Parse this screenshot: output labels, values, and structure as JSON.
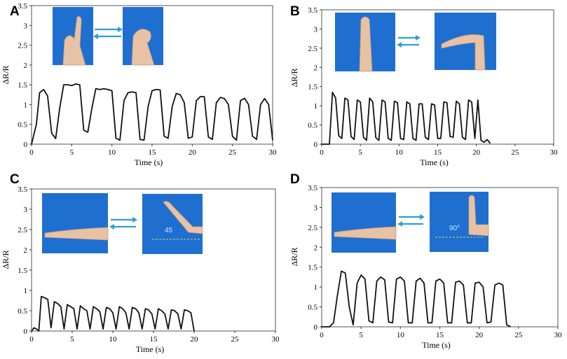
{
  "chart_data": [
    {
      "panel": "A",
      "type": "line",
      "xlabel": "Time (s)",
      "ylabel": "ΔR/R",
      "xlim": [
        0,
        30
      ],
      "ylim": [
        0,
        3.5
      ],
      "xticks": [
        "0",
        "5",
        "10",
        "15",
        "20",
        "25",
        "30"
      ],
      "yticks": [
        "0",
        "0.5",
        "1",
        "1.5",
        "2",
        "2.5",
        "3",
        "3.5"
      ],
      "grid": false,
      "series": [
        {
          "x": [
            0,
            0.6,
            1.0,
            1.5,
            2.0,
            2.5,
            3.0,
            3.5,
            4.0,
            4.5,
            5.0,
            5.5,
            6.0,
            6.5,
            7.0,
            7.5,
            8.0,
            8.5,
            9.0,
            9.5,
            10.0,
            10.5,
            11.0,
            11.5,
            12.0,
            12.5,
            13.0,
            13.5,
            14.0,
            14.5,
            15.0,
            15.5,
            16.0,
            16.5,
            17.0,
            17.5,
            18.0,
            18.5,
            19.0,
            19.5,
            20.0,
            20.5,
            21.0,
            21.5,
            22.0,
            22.5,
            23.0,
            23.5,
            24.0,
            24.5,
            25.0,
            25.5,
            26.0,
            26.5,
            27.0,
            27.5,
            28.0,
            28.5,
            29.0,
            29.5,
            30.0
          ],
          "values": [
            0.0,
            0.5,
            1.3,
            1.38,
            1.22,
            0.28,
            0.14,
            0.9,
            1.5,
            1.5,
            1.48,
            1.52,
            1.5,
            0.35,
            0.3,
            0.9,
            1.4,
            1.38,
            1.4,
            1.38,
            1.35,
            0.15,
            0.1,
            1.1,
            1.3,
            1.32,
            1.3,
            0.12,
            0.1,
            0.95,
            1.35,
            1.38,
            1.37,
            0.2,
            0.15,
            0.95,
            1.28,
            1.25,
            1.05,
            0.15,
            0.18,
            1.1,
            1.2,
            1.2,
            0.18,
            0.12,
            1.05,
            1.18,
            1.15,
            1.0,
            0.2,
            0.1,
            1.1,
            1.16,
            1.0,
            0.2,
            0.12,
            1.0,
            1.15,
            1.0,
            0.1
          ]
        }
      ],
      "photos": [
        {
          "name": "index-finger-straight-photo"
        },
        {
          "name": "index-finger-bent-photo"
        }
      ]
    },
    {
      "panel": "B",
      "type": "line",
      "xlabel": "Time (s)",
      "ylabel": "ΔR/R",
      "xlim": [
        0,
        30
      ],
      "ylim": [
        0,
        3.5
      ],
      "xticks": [
        "0",
        "5",
        "10",
        "15",
        "20",
        "25",
        "30"
      ],
      "yticks": [
        "0",
        "0.5",
        "1",
        "1.5",
        "2",
        "2.5",
        "3",
        "3.5"
      ],
      "grid": false,
      "series": [
        {
          "x": [
            0,
            1.0,
            1.4,
            1.8,
            2.2,
            2.6,
            3.0,
            3.4,
            3.8,
            4.2,
            4.6,
            5.0,
            5.4,
            5.8,
            6.2,
            6.6,
            7.0,
            7.4,
            7.8,
            8.2,
            8.6,
            9.0,
            9.4,
            9.8,
            10.2,
            10.6,
            11.0,
            11.4,
            11.8,
            12.2,
            12.6,
            13.0,
            13.4,
            13.8,
            14.2,
            14.6,
            15.0,
            15.4,
            15.8,
            16.2,
            16.6,
            17.0,
            17.4,
            17.8,
            18.2,
            18.6,
            19.0,
            19.4,
            19.8,
            20.2,
            20.6,
            21.0,
            21.4,
            21.8
          ],
          "values": [
            0.0,
            0.0,
            1.35,
            1.2,
            0.22,
            0.15,
            1.2,
            1.15,
            0.2,
            0.12,
            1.15,
            1.1,
            0.18,
            0.1,
            1.2,
            1.1,
            0.17,
            0.1,
            1.15,
            1.1,
            0.15,
            0.1,
            1.12,
            1.08,
            0.15,
            0.12,
            1.1,
            1.05,
            0.15,
            0.1,
            1.05,
            1.05,
            0.18,
            0.12,
            1.05,
            1.02,
            0.15,
            0.15,
            1.1,
            1.08,
            0.2,
            0.18,
            1.12,
            1.05,
            0.18,
            0.12,
            1.15,
            1.1,
            0.15,
            1.15,
            0.1,
            0.05,
            0.12,
            0.02
          ]
        }
      ],
      "photos": [
        {
          "name": "wrist-straight-photo"
        },
        {
          "name": "wrist-bent-photo"
        }
      ]
    },
    {
      "panel": "C",
      "type": "line",
      "xlabel": "Time (s)",
      "ylabel": "ΔR/R",
      "xlim": [
        0,
        30
      ],
      "ylim": [
        0,
        3.5
      ],
      "xticks": [
        "0",
        "5",
        "10",
        "15",
        "20",
        "25",
        "30"
      ],
      "yticks": [
        "0",
        "0.5",
        "1",
        "1.5",
        "2",
        "2.5",
        "3",
        "3.5"
      ],
      "grid": false,
      "angle_label": "45",
      "series": [
        {
          "x": [
            0,
            0.3,
            0.6,
            0.9,
            1.2,
            1.6,
            2.0,
            2.4,
            2.8,
            3.2,
            3.6,
            4.0,
            4.4,
            4.8,
            5.2,
            5.6,
            6.0,
            6.4,
            6.8,
            7.2,
            7.6,
            8.0,
            8.4,
            8.8,
            9.2,
            9.6,
            10.0,
            10.4,
            10.8,
            11.2,
            11.6,
            12.0,
            12.4,
            12.8,
            13.2,
            13.6,
            14.0,
            14.4,
            14.8,
            15.2,
            15.6,
            16.0,
            16.4,
            16.8,
            17.2,
            17.6,
            18.0,
            18.4,
            18.8,
            19.2,
            19.6,
            20.0
          ],
          "values": [
            0.0,
            0.08,
            0.05,
            0.0,
            0.85,
            0.82,
            0.78,
            0.08,
            0.72,
            0.68,
            0.6,
            0.05,
            0.65,
            0.6,
            0.55,
            0.05,
            0.62,
            0.55,
            0.5,
            0.05,
            0.6,
            0.55,
            0.48,
            0.05,
            0.58,
            0.55,
            0.45,
            0.05,
            0.6,
            0.55,
            0.45,
            0.05,
            0.58,
            0.55,
            0.45,
            0.05,
            0.55,
            0.52,
            0.42,
            0.05,
            0.55,
            0.5,
            0.42,
            0.05,
            0.52,
            0.5,
            0.42,
            0.05,
            0.52,
            0.5,
            0.45,
            0.0
          ]
        }
      ],
      "photos": [
        {
          "name": "arm-straight-photo"
        },
        {
          "name": "arm-bent-45-photo"
        }
      ]
    },
    {
      "panel": "D",
      "type": "line",
      "xlabel": "Time (s)",
      "ylabel": "ΔR/R",
      "xlim": [
        0,
        30
      ],
      "ylim": [
        0,
        3.5
      ],
      "xticks": [
        "0",
        "5",
        "10",
        "15",
        "20",
        "25",
        "30"
      ],
      "yticks": [
        "0",
        "0.5",
        "1",
        "1.5",
        "2",
        "2.5",
        "3",
        "3.5"
      ],
      "grid": false,
      "angle_label": "90°",
      "series": [
        {
          "x": [
            0,
            1.0,
            1.5,
            2.0,
            2.5,
            3.0,
            3.5,
            4.0,
            4.5,
            5.0,
            5.5,
            6.0,
            6.5,
            7.0,
            7.5,
            8.0,
            8.5,
            9.0,
            9.5,
            10.0,
            10.5,
            11.0,
            11.5,
            12.0,
            12.5,
            13.0,
            13.5,
            14.0,
            14.5,
            15.0,
            15.5,
            16.0,
            16.5,
            17.0,
            17.5,
            18.0,
            18.5,
            19.0,
            19.5,
            20.0,
            20.5,
            21.0,
            21.5,
            22.0,
            22.5,
            23.0,
            23.5,
            24.0
          ],
          "values": [
            0.0,
            0.0,
            0.1,
            0.8,
            1.4,
            1.35,
            0.5,
            0.05,
            1.1,
            1.3,
            1.2,
            0.15,
            0.1,
            1.15,
            1.25,
            1.18,
            0.12,
            0.1,
            1.2,
            1.25,
            1.15,
            0.1,
            0.1,
            1.15,
            1.22,
            1.1,
            0.1,
            0.1,
            1.15,
            1.2,
            1.1,
            0.1,
            0.1,
            1.12,
            1.15,
            1.05,
            0.1,
            0.1,
            1.1,
            1.12,
            1.0,
            0.1,
            0.12,
            1.05,
            1.1,
            1.05,
            0.05,
            0.0
          ]
        }
      ],
      "photos": [
        {
          "name": "elbow-straight-photo"
        },
        {
          "name": "elbow-bent-90-photo"
        }
      ]
    }
  ]
}
